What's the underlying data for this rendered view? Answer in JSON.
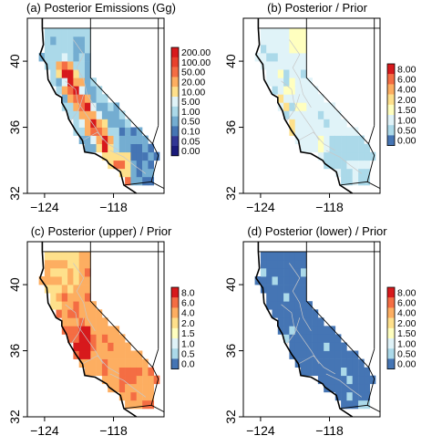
{
  "x_ticks": [
    "−124",
    "−118"
  ],
  "y_ticks": [
    "32",
    "36",
    "40"
  ],
  "panels": [
    {
      "id": "a",
      "title": "(a) Posterior Emissions (Gg)",
      "scheme": "emis",
      "legend_labels": [
        "200.00",
        "100.00",
        "50.00",
        "20.00",
        "10.00",
        "5.00",
        "1.00",
        "0.50",
        "0.10",
        "0.05",
        "0.00"
      ],
      "legend_colors": [
        "#d7191c",
        "#e8412c",
        "#f46d43",
        "#fdae61",
        "#fee08b",
        "#e0f3f8",
        "#abd9e9",
        "#74add1",
        "#4575b4",
        "#313695",
        "#1a1a7a"
      ]
    },
    {
      "id": "b",
      "title": "(b) Posterior / Prior",
      "scheme": "ratio_b",
      "legend_labels": [
        "8.00",
        "6.00",
        "4.00",
        "2.00",
        "1.50",
        "1.00",
        "0.50",
        "0.00"
      ],
      "legend_colors": [
        "#d7191c",
        "#f46d43",
        "#fdae61",
        "#fee08b",
        "#ffffbf",
        "#e0f3f8",
        "#abd9e9",
        "#4575b4"
      ]
    },
    {
      "id": "c",
      "title": "(c) Posterior (upper) / Prior",
      "scheme": "ratio_c",
      "legend_labels": [
        "8.0",
        "6.0",
        "4.0",
        "2.0",
        "1.5",
        "1.0",
        "0.5",
        "0.0"
      ],
      "legend_colors": [
        "#d7191c",
        "#f46d43",
        "#fdae61",
        "#fee08b",
        "#ffffbf",
        "#e0f3f8",
        "#abd9e9",
        "#4575b4"
      ]
    },
    {
      "id": "d",
      "title": "(d) Posterior (lower) / Prior",
      "scheme": "ratio_d",
      "legend_labels": [
        "8.00",
        "6.00",
        "4.00",
        "2.00",
        "1.50",
        "1.00",
        "0.50",
        "0.00"
      ],
      "legend_colors": [
        "#d7191c",
        "#f46d43",
        "#fdae61",
        "#fee08b",
        "#ffffbf",
        "#e0f3f8",
        "#abd9e9",
        "#4575b4"
      ]
    }
  ]
}
